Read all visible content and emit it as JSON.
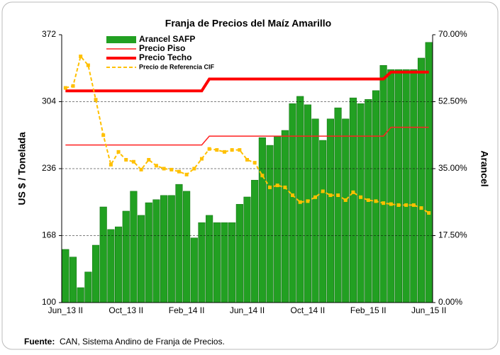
{
  "chart_data": {
    "type": "bar-line",
    "title": "Franja de Precios del Maíz Amarillo",
    "y_label": "US $ / Tonelada",
    "y2_label": "Arancel",
    "source_label": "Fuente:",
    "source": "CAN, Sistema Andino de Franja de Precios.",
    "categories": [
      "Jun_13 II",
      null,
      null,
      null,
      null,
      null,
      null,
      null,
      "Oct_13 II",
      null,
      null,
      null,
      null,
      null,
      null,
      null,
      "Feb_14 II",
      null,
      null,
      null,
      null,
      null,
      null,
      null,
      "Jun_14 II",
      null,
      null,
      null,
      null,
      null,
      null,
      null,
      "Oct_14 II",
      null,
      null,
      null,
      null,
      null,
      null,
      null,
      "Feb_15 II",
      null,
      null,
      null,
      null,
      null,
      null,
      null,
      "Jun_15 II"
    ],
    "ylim": [
      100,
      372
    ],
    "yticks": [
      100,
      168,
      236,
      304,
      372
    ],
    "y2lim": [
      0,
      70
    ],
    "y2ticks": [
      {
        "value": 0,
        "label": "0.00%"
      },
      {
        "value": 17.5,
        "label": "17.50%"
      },
      {
        "value": 35,
        "label": "35.00%"
      },
      {
        "value": 52.5,
        "label": "52.50%"
      },
      {
        "value": 70,
        "label": "70.00%"
      }
    ],
    "grid": true,
    "series": [
      {
        "name": "Arancel SAFP",
        "type": "bar",
        "axis": "y2",
        "color": "#22a022",
        "values": [
          13.9,
          11.9,
          3.9,
          8.0,
          15.0,
          25.0,
          19.1,
          19.8,
          23.9,
          29.1,
          22.8,
          26.1,
          26.9,
          28.0,
          28.0,
          30.9,
          29.1,
          16.9,
          20.9,
          22.8,
          20.9,
          20.9,
          20.9,
          25.7,
          27.6,
          32.0,
          43.1,
          41.1,
          43.5,
          45.0,
          52.0,
          53.9,
          51.7,
          48.0,
          42.4,
          48.0,
          50.9,
          48.0,
          53.5,
          52.0,
          53.1,
          55.4,
          62.0,
          60.9,
          60.9,
          60.9,
          60.9,
          63.9,
          68.0
        ]
      },
      {
        "name": "Precio Piso",
        "type": "line",
        "color": "#ff2020",
        "values": [
          260,
          260,
          260,
          260,
          260,
          260,
          260,
          260,
          260,
          260,
          260,
          260,
          260,
          260,
          260,
          260,
          260,
          260,
          260,
          269,
          269,
          269,
          269,
          269,
          269,
          269,
          269,
          269,
          269,
          269,
          269,
          269,
          269,
          269,
          269,
          269,
          269,
          269,
          269,
          269,
          269,
          269,
          269,
          278,
          278,
          278,
          278,
          278,
          278
        ]
      },
      {
        "name": "Precio Techo",
        "type": "line",
        "color": "#ff0000",
        "values": [
          315,
          315,
          315,
          315,
          315,
          315,
          315,
          315,
          315,
          315,
          315,
          315,
          315,
          315,
          315,
          315,
          315,
          315,
          315,
          327,
          327,
          327,
          327,
          327,
          327,
          327,
          327,
          327,
          327,
          327,
          327,
          327,
          327,
          327,
          327,
          327,
          327,
          327,
          327,
          327,
          327,
          327,
          327,
          334,
          334,
          334,
          334,
          334,
          334
        ]
      },
      {
        "name": "Precio de Referencia CIF",
        "type": "line",
        "color": "#ffc000",
        "values": [
          318,
          320,
          350,
          341,
          306,
          270,
          240,
          253,
          245,
          243,
          235,
          245,
          239,
          236,
          235,
          233,
          230,
          236,
          246,
          256,
          255,
          253,
          255,
          255,
          245,
          242,
          229,
          217,
          219,
          217,
          209,
          202,
          203,
          207,
          213,
          209,
          209,
          204,
          212,
          207,
          204,
          203,
          201,
          200,
          199,
          199,
          199,
          196,
          191
        ]
      }
    ]
  }
}
